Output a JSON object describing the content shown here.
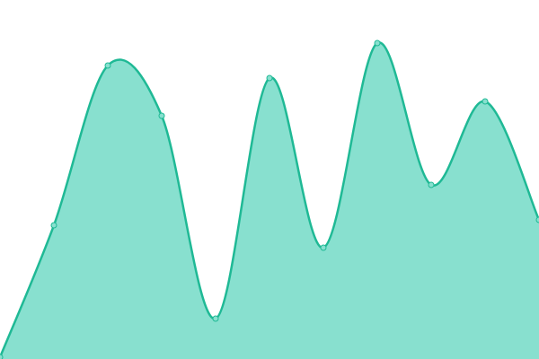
{
  "chart_data": {
    "type": "area",
    "categories": [
      null,
      null,
      null,
      null,
      null,
      null,
      null,
      null,
      null,
      null,
      null
    ],
    "series": [
      {
        "color": "#1fb995",
        "fill": "#88e0cf",
        "values": [
          2,
          149,
          327,
          271,
          45,
          313,
          124,
          352,
          194,
          287,
          155
        ]
      }
    ],
    "ylim": [
      0,
      400
    ],
    "smooth": true,
    "markers": true
  }
}
